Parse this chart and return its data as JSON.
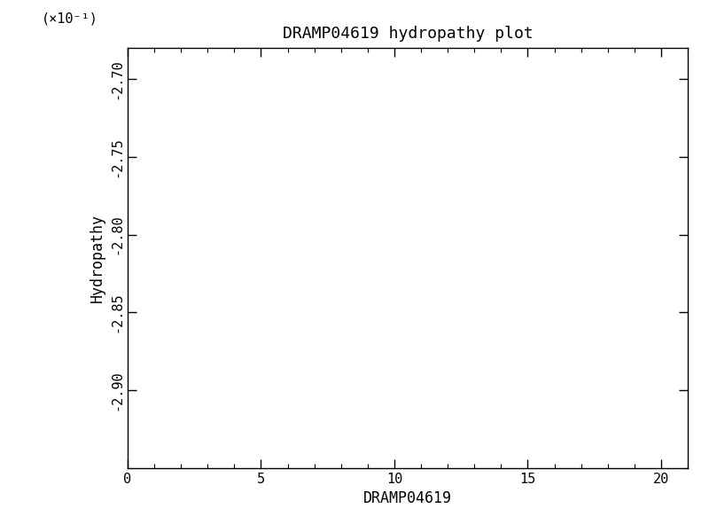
{
  "title": "DRAMP04619 hydropathy plot",
  "xlabel": "DRAMP04619",
  "ylabel": "Hydropathy",
  "xlim": [
    0,
    21
  ],
  "ylim": [
    -0.295,
    -0.268
  ],
  "xticks": [
    0,
    5,
    10,
    15,
    20
  ],
  "yticks": [
    -0.29,
    -0.285,
    -0.28,
    -0.275,
    -0.27
  ],
  "ytick_labels": [
    "-2.90",
    "-2.85",
    "-2.80",
    "-2.75",
    "-2.70"
  ],
  "scale_label": "(×10⁻¹)",
  "background_color": "#ffffff",
  "axes_color": "#000000",
  "font_family": "DejaVu Sans Mono",
  "title_fontsize": 13,
  "label_fontsize": 12,
  "tick_fontsize": 11,
  "scale_fontsize": 11
}
